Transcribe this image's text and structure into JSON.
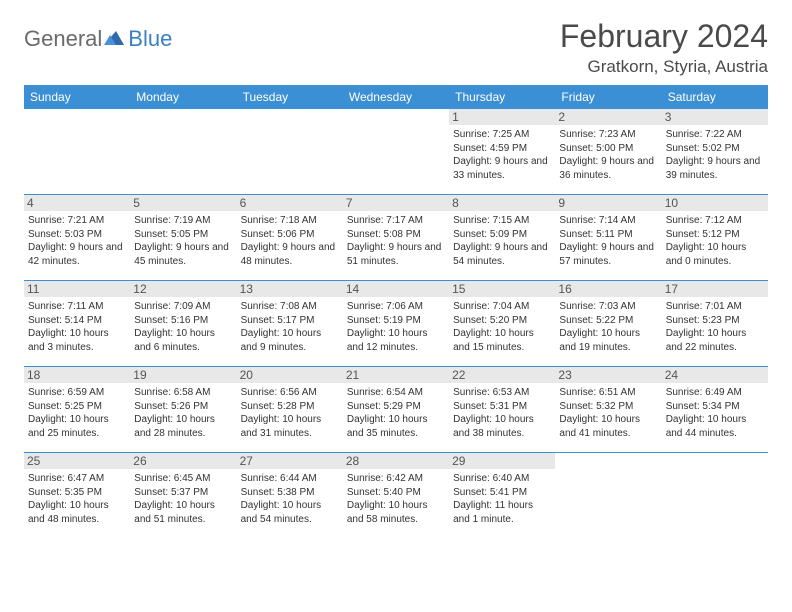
{
  "logo": {
    "text1": "General",
    "text2": "Blue"
  },
  "title": "February 2024",
  "location": "Gratkorn, Styria, Austria",
  "colors": {
    "header_bg": "#3b8fd4",
    "header_text": "#ffffff",
    "border": "#3b8fd4",
    "logo_gray": "#6b6b6b",
    "logo_blue": "#3b7fc4",
    "daynum_bg": "#e8e8e8"
  },
  "day_headers": [
    "Sunday",
    "Monday",
    "Tuesday",
    "Wednesday",
    "Thursday",
    "Friday",
    "Saturday"
  ],
  "weeks": [
    [
      null,
      null,
      null,
      null,
      {
        "n": "1",
        "sr": "7:25 AM",
        "ss": "4:59 PM",
        "dl": "Daylight: 9 hours and 33 minutes."
      },
      {
        "n": "2",
        "sr": "7:23 AM",
        "ss": "5:00 PM",
        "dl": "Daylight: 9 hours and 36 minutes."
      },
      {
        "n": "3",
        "sr": "7:22 AM",
        "ss": "5:02 PM",
        "dl": "Daylight: 9 hours and 39 minutes."
      }
    ],
    [
      {
        "n": "4",
        "sr": "7:21 AM",
        "ss": "5:03 PM",
        "dl": "Daylight: 9 hours and 42 minutes."
      },
      {
        "n": "5",
        "sr": "7:19 AM",
        "ss": "5:05 PM",
        "dl": "Daylight: 9 hours and 45 minutes."
      },
      {
        "n": "6",
        "sr": "7:18 AM",
        "ss": "5:06 PM",
        "dl": "Daylight: 9 hours and 48 minutes."
      },
      {
        "n": "7",
        "sr": "7:17 AM",
        "ss": "5:08 PM",
        "dl": "Daylight: 9 hours and 51 minutes."
      },
      {
        "n": "8",
        "sr": "7:15 AM",
        "ss": "5:09 PM",
        "dl": "Daylight: 9 hours and 54 minutes."
      },
      {
        "n": "9",
        "sr": "7:14 AM",
        "ss": "5:11 PM",
        "dl": "Daylight: 9 hours and 57 minutes."
      },
      {
        "n": "10",
        "sr": "7:12 AM",
        "ss": "5:12 PM",
        "dl": "Daylight: 10 hours and 0 minutes."
      }
    ],
    [
      {
        "n": "11",
        "sr": "7:11 AM",
        "ss": "5:14 PM",
        "dl": "Daylight: 10 hours and 3 minutes."
      },
      {
        "n": "12",
        "sr": "7:09 AM",
        "ss": "5:16 PM",
        "dl": "Daylight: 10 hours and 6 minutes."
      },
      {
        "n": "13",
        "sr": "7:08 AM",
        "ss": "5:17 PM",
        "dl": "Daylight: 10 hours and 9 minutes."
      },
      {
        "n": "14",
        "sr": "7:06 AM",
        "ss": "5:19 PM",
        "dl": "Daylight: 10 hours and 12 minutes."
      },
      {
        "n": "15",
        "sr": "7:04 AM",
        "ss": "5:20 PM",
        "dl": "Daylight: 10 hours and 15 minutes."
      },
      {
        "n": "16",
        "sr": "7:03 AM",
        "ss": "5:22 PM",
        "dl": "Daylight: 10 hours and 19 minutes."
      },
      {
        "n": "17",
        "sr": "7:01 AM",
        "ss": "5:23 PM",
        "dl": "Daylight: 10 hours and 22 minutes."
      }
    ],
    [
      {
        "n": "18",
        "sr": "6:59 AM",
        "ss": "5:25 PM",
        "dl": "Daylight: 10 hours and 25 minutes."
      },
      {
        "n": "19",
        "sr": "6:58 AM",
        "ss": "5:26 PM",
        "dl": "Daylight: 10 hours and 28 minutes."
      },
      {
        "n": "20",
        "sr": "6:56 AM",
        "ss": "5:28 PM",
        "dl": "Daylight: 10 hours and 31 minutes."
      },
      {
        "n": "21",
        "sr": "6:54 AM",
        "ss": "5:29 PM",
        "dl": "Daylight: 10 hours and 35 minutes."
      },
      {
        "n": "22",
        "sr": "6:53 AM",
        "ss": "5:31 PM",
        "dl": "Daylight: 10 hours and 38 minutes."
      },
      {
        "n": "23",
        "sr": "6:51 AM",
        "ss": "5:32 PM",
        "dl": "Daylight: 10 hours and 41 minutes."
      },
      {
        "n": "24",
        "sr": "6:49 AM",
        "ss": "5:34 PM",
        "dl": "Daylight: 10 hours and 44 minutes."
      }
    ],
    [
      {
        "n": "25",
        "sr": "6:47 AM",
        "ss": "5:35 PM",
        "dl": "Daylight: 10 hours and 48 minutes."
      },
      {
        "n": "26",
        "sr": "6:45 AM",
        "ss": "5:37 PM",
        "dl": "Daylight: 10 hours and 51 minutes."
      },
      {
        "n": "27",
        "sr": "6:44 AM",
        "ss": "5:38 PM",
        "dl": "Daylight: 10 hours and 54 minutes."
      },
      {
        "n": "28",
        "sr": "6:42 AM",
        "ss": "5:40 PM",
        "dl": "Daylight: 10 hours and 58 minutes."
      },
      {
        "n": "29",
        "sr": "6:40 AM",
        "ss": "5:41 PM",
        "dl": "Daylight: 11 hours and 1 minute."
      },
      null,
      null
    ]
  ],
  "labels": {
    "sunrise": "Sunrise: ",
    "sunset": "Sunset: "
  }
}
